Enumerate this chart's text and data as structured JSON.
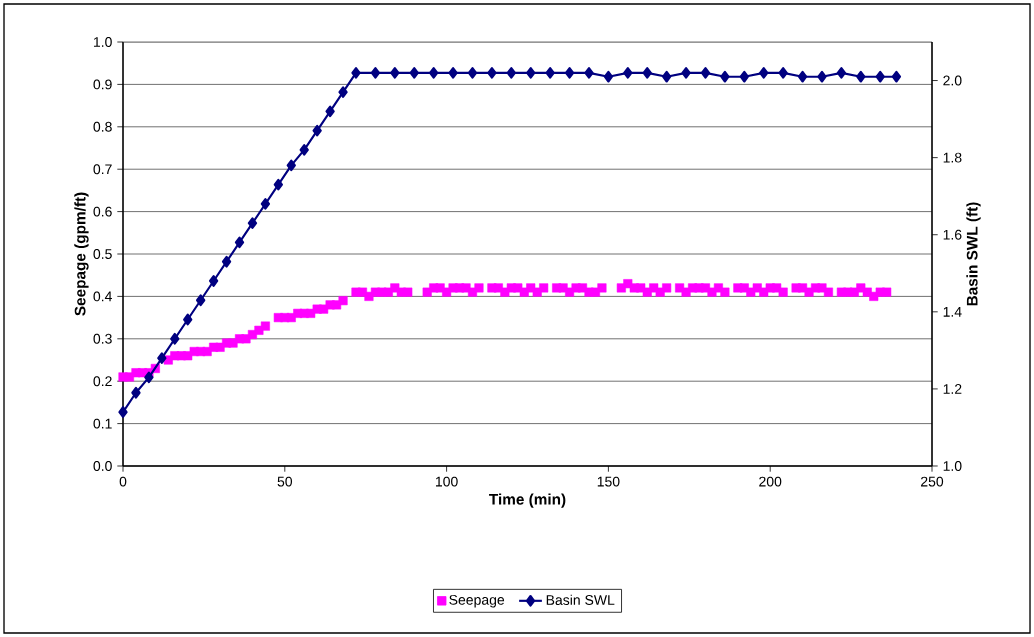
{
  "chart_data": {
    "type": "scatter",
    "xlabel": "Time (min)",
    "ylabel": "Seepage (gpm/ft)",
    "y2label": "Basin SWL (ft)",
    "xlim": [
      0,
      250
    ],
    "xticks": [
      0,
      50,
      100,
      150,
      200,
      250
    ],
    "ylim": [
      0,
      1
    ],
    "yticks": [
      {
        "value": 0,
        "label": "0.0"
      },
      {
        "value": 0.1,
        "label": "0.1"
      },
      {
        "value": 0.2,
        "label": "0.2"
      },
      {
        "value": 0.3,
        "label": "0.3"
      },
      {
        "value": 0.4,
        "label": "0.4"
      },
      {
        "value": 0.5,
        "label": "0.5"
      },
      {
        "value": 0.6,
        "label": "0.6"
      },
      {
        "value": 0.7,
        "label": "0.7"
      },
      {
        "value": 0.8,
        "label": "0.8"
      },
      {
        "value": 0.9,
        "label": "0.9"
      },
      {
        "value": 1,
        "label": "1.0"
      }
    ],
    "y2lim": [
      1.0,
      2.1
    ],
    "y2ticks": [
      {
        "value": 1.0,
        "label": "1.0"
      },
      {
        "value": 1.2,
        "label": "1.2"
      },
      {
        "value": 1.4,
        "label": "1.4"
      },
      {
        "value": 1.6,
        "label": "1.6"
      },
      {
        "value": 1.8,
        "label": "1.8"
      },
      {
        "value": 2.0,
        "label": "2.0"
      }
    ],
    "grid": "y",
    "legend": "bottom",
    "series": [
      {
        "name": "Seepage",
        "color": "#ff00ff",
        "marker": "square",
        "x": [
          0,
          2,
          4,
          6,
          8,
          10,
          14,
          16,
          18,
          20,
          22,
          24,
          26,
          28,
          30,
          32,
          34,
          36,
          38,
          40,
          42,
          44,
          48,
          50,
          52,
          54,
          56,
          58,
          60,
          62,
          64,
          66,
          68,
          72,
          74,
          76,
          78,
          80,
          82,
          84,
          86,
          88,
          94,
          96,
          98,
          100,
          102,
          104,
          106,
          108,
          110,
          114,
          116,
          118,
          120,
          122,
          124,
          126,
          128,
          130,
          134,
          136,
          138,
          140,
          142,
          144,
          146,
          148,
          154,
          156,
          158,
          160,
          162,
          164,
          166,
          168,
          172,
          174,
          176,
          178,
          180,
          182,
          184,
          186,
          190,
          192,
          194,
          196,
          198,
          200,
          202,
          204,
          208,
          210,
          212,
          214,
          216,
          218,
          222,
          224,
          226,
          228,
          230,
          232,
          234,
          236
        ],
        "values": [
          0.21,
          0.21,
          0.22,
          0.22,
          0.22,
          0.23,
          0.25,
          0.26,
          0.26,
          0.26,
          0.27,
          0.27,
          0.27,
          0.28,
          0.28,
          0.29,
          0.29,
          0.3,
          0.3,
          0.31,
          0.32,
          0.33,
          0.35,
          0.35,
          0.35,
          0.36,
          0.36,
          0.36,
          0.37,
          0.37,
          0.38,
          0.38,
          0.39,
          0.41,
          0.41,
          0.4,
          0.41,
          0.41,
          0.41,
          0.42,
          0.41,
          0.41,
          0.41,
          0.42,
          0.42,
          0.41,
          0.42,
          0.42,
          0.42,
          0.41,
          0.42,
          0.42,
          0.42,
          0.41,
          0.42,
          0.42,
          0.41,
          0.42,
          0.41,
          0.42,
          0.42,
          0.42,
          0.41,
          0.42,
          0.42,
          0.41,
          0.41,
          0.42,
          0.42,
          0.43,
          0.42,
          0.42,
          0.41,
          0.42,
          0.41,
          0.42,
          0.42,
          0.41,
          0.42,
          0.42,
          0.42,
          0.41,
          0.42,
          0.41,
          0.42,
          0.42,
          0.41,
          0.42,
          0.41,
          0.42,
          0.42,
          0.41,
          0.42,
          0.42,
          0.41,
          0.42,
          0.42,
          0.41,
          0.41,
          0.41,
          0.41,
          0.42,
          0.41,
          0.4,
          0.41,
          0.41
        ]
      },
      {
        "name": "Basin SWL",
        "type": "line",
        "axis": "y2",
        "color": "#000080",
        "marker": "diamond",
        "x": [
          0,
          4,
          8,
          12,
          16,
          20,
          24,
          28,
          32,
          36,
          40,
          44,
          48,
          52,
          56,
          60,
          64,
          68,
          72,
          78,
          84,
          90,
          96,
          102,
          108,
          114,
          120,
          126,
          132,
          138,
          144,
          150,
          156,
          162,
          168,
          174,
          180,
          186,
          192,
          198,
          204,
          210,
          216,
          222,
          228,
          234,
          239
        ],
        "values": [
          1.14,
          1.19,
          1.23,
          1.28,
          1.33,
          1.38,
          1.43,
          1.48,
          1.53,
          1.58,
          1.63,
          1.68,
          1.73,
          1.78,
          1.82,
          1.87,
          1.92,
          1.97,
          2.02,
          2.02,
          2.02,
          2.02,
          2.02,
          2.02,
          2.02,
          2.02,
          2.02,
          2.02,
          2.02,
          2.02,
          2.02,
          2.01,
          2.02,
          2.02,
          2.01,
          2.02,
          2.02,
          2.01,
          2.01,
          2.02,
          2.02,
          2.01,
          2.01,
          2.02,
          2.01,
          2.01,
          2.01
        ]
      }
    ]
  }
}
